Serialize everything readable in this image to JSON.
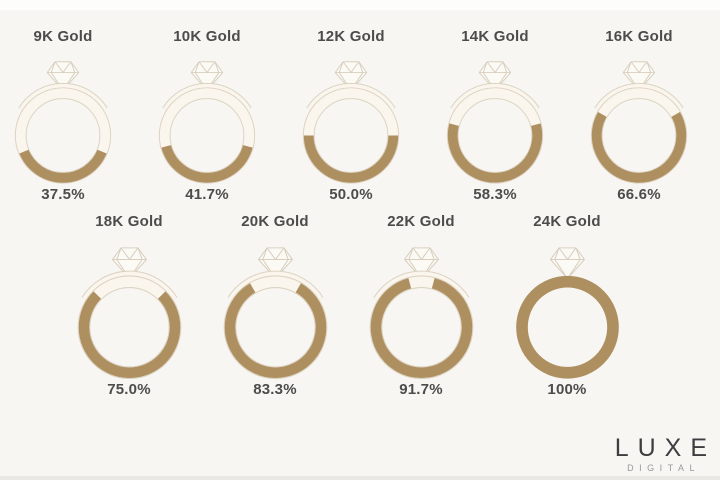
{
  "page": {
    "background": "#f7f6f3",
    "top_strip_color": "#fdfdfc",
    "bottom_strip_color": "#e9e8e4"
  },
  "colors": {
    "gold": "#ad8f60",
    "band_cream": "#faf5ed",
    "band_outline": "#ddd3c2",
    "diamond_stroke": "#d8cfc0",
    "diamond_fill": "#fcfaf5",
    "text": "#4c4c4a",
    "logo_main": "#3e3e40",
    "logo_sub": "#98979a"
  },
  "chart_data": {
    "type": "pie",
    "subtype": "ring-gauge-grid",
    "title": "",
    "unit": "%",
    "categories": [
      "9K Gold",
      "10K Gold",
      "12K Gold",
      "14K Gold",
      "16K Gold",
      "18K Gold",
      "20K Gold",
      "22K Gold",
      "24K Gold"
    ],
    "values": [
      37.5,
      41.7,
      50.0,
      58.3,
      66.6,
      75.0,
      83.3,
      91.7,
      100
    ],
    "value_labels": [
      "37.5%",
      "41.7%",
      "50.0%",
      "58.3%",
      "66.6%",
      "75.0%",
      "83.3%",
      "91.7%",
      "100%"
    ],
    "row_layout": [
      5,
      4
    ],
    "legend": "none",
    "gauge_style": "engagement-ring icon; gold arc fraction of the band equals purity percent, arc centered at bottom of ring",
    "xlabel": "",
    "ylabel": ""
  },
  "logo": {
    "main": "LUXE",
    "sub": "DIGITAL"
  }
}
